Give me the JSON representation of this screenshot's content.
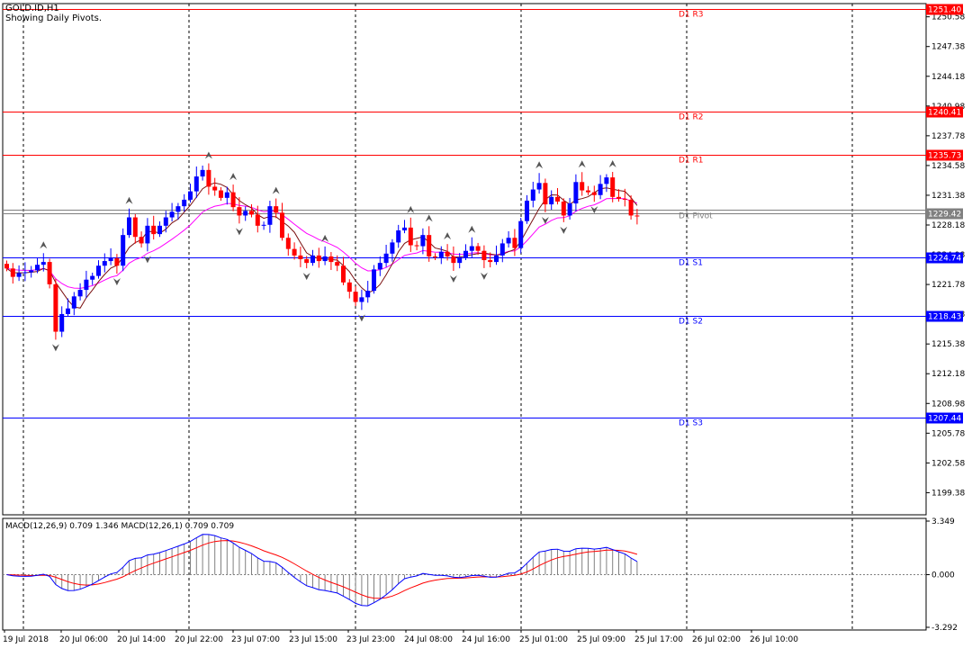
{
  "header": {
    "symbol_line": "GOLD.ID,H1",
    "subtitle": "Showing Daily Pivots."
  },
  "macd_header": "MACD(12,26,9) 0.709 1.346 MACD(12,26,1) 0.709 0.709",
  "colors": {
    "background": "#ffffff",
    "bull": "#0000ff",
    "bear": "#ff0000",
    "resistance": "#ff0000",
    "support": "#0000ff",
    "pivot": "#7f7f7f",
    "ma_fast": "#7a1010",
    "ma_slow": "#ff00ff",
    "macd_signal": "#ff0000",
    "macd_line": "#0000ff",
    "histogram": "#808080",
    "price_tag_resistance": "#ff0000",
    "price_tag_support": "#0000ff",
    "price_tag_pivot": "#808080"
  },
  "chart_data": [
    {
      "type": "candlestick",
      "symbol": "GOLD.ID",
      "timeframe": "H1",
      "ylim": [
        1197.0,
        1252.0
      ],
      "y_ticks": [
        "1250.58",
        "1247.38",
        "1244.18",
        "1240.98",
        "1237.78",
        "1234.58",
        "1231.38",
        "1228.18",
        "1224.98",
        "1221.78",
        "1218.58",
        "1215.38",
        "1212.18",
        "1208.98",
        "1205.78",
        "1202.58",
        "1199.38"
      ],
      "x_ticks": [
        "19 Jul 2018",
        "20 Jul 06:00",
        "20 Jul 14:00",
        "20 Jul 22:00",
        "23 Jul 07:00",
        "23 Jul 15:00",
        "23 Jul 23:00",
        "24 Jul 08:00",
        "24 Jul 16:00",
        "25 Jul 01:00",
        "25 Jul 09:00",
        "25 Jul 17:00",
        "26 Jul 02:00",
        "26 Jul 10:00"
      ],
      "closes": [
        1223.5,
        1222.6,
        1223.0,
        1223.1,
        1223.3,
        1223.9,
        1224.2,
        1221.8,
        1216.7,
        1218.6,
        1219.2,
        1220.5,
        1221.2,
        1222.3,
        1222.7,
        1223.8,
        1224.3,
        1224.6,
        1223.8,
        1227.1,
        1229.0,
        1226.9,
        1226.2,
        1228.1,
        1227.2,
        1228.1,
        1229.0,
        1229.6,
        1230.2,
        1230.9,
        1231.8,
        1233.4,
        1234.1,
        1232.3,
        1231.9,
        1231.1,
        1231.7,
        1230.1,
        1229.2,
        1229.7,
        1229.3,
        1228.1,
        1228.2,
        1230.2,
        1229.5,
        1226.8,
        1225.6,
        1224.9,
        1224.5,
        1224.1,
        1224.9,
        1224.3,
        1224.8,
        1224.2,
        1223.8,
        1222.0,
        1221.0,
        1219.9,
        1220.4,
        1221.1,
        1223.4,
        1224.1,
        1225.1,
        1226.3,
        1227.6,
        1227.9,
        1226.0,
        1225.9,
        1227.1,
        1224.8,
        1224.7,
        1225.3,
        1224.8,
        1224.1,
        1224.7,
        1225.4,
        1225.9,
        1225.4,
        1224.4,
        1224.2,
        1224.9,
        1226.2,
        1226.8,
        1225.7,
        1228.6,
        1230.8,
        1232.0,
        1232.7,
        1230.4,
        1231.2,
        1230.7,
        1229.2,
        1230.5,
        1232.8,
        1231.9,
        1231.7,
        1231.4,
        1232.6,
        1233.3,
        1231.2,
        1231.0,
        1230.9,
        1229.2,
        1229.1
      ],
      "pivot_levels": [
        {
          "label": "D1 R3",
          "value": 1251.4,
          "tag": "1251.40",
          "kind": "resistance"
        },
        {
          "label": "D1 R2",
          "value": 1240.41,
          "tag": "1240.41",
          "kind": "resistance"
        },
        {
          "label": "D1 R1",
          "value": 1235.73,
          "tag": "1235.73",
          "kind": "resistance"
        },
        {
          "label": "D1 Pivot",
          "value": 1229.78,
          "tag": "",
          "kind": "pivot"
        },
        {
          "label": "D1 S1",
          "value": 1224.74,
          "tag": "1224.74",
          "kind": "support"
        },
        {
          "label": "D1 S2",
          "value": 1218.43,
          "tag": "1218.43",
          "kind": "support"
        },
        {
          "label": "D1 S3",
          "value": 1207.44,
          "tag": "1207.44",
          "kind": "support"
        }
      ],
      "current_price": {
        "value": 1229.42,
        "tag": "1229.42"
      }
    },
    {
      "type": "line",
      "title": "MACD(12,26,9)",
      "y_ticks": [
        "3.349",
        "0.000",
        "-3.292"
      ],
      "ylim": [
        -3.292,
        3.349
      ],
      "series": [
        {
          "name": "MACD(12,26,1)",
          "values": []
        },
        {
          "name": "MACD(12,26,9)",
          "values": []
        }
      ]
    }
  ]
}
